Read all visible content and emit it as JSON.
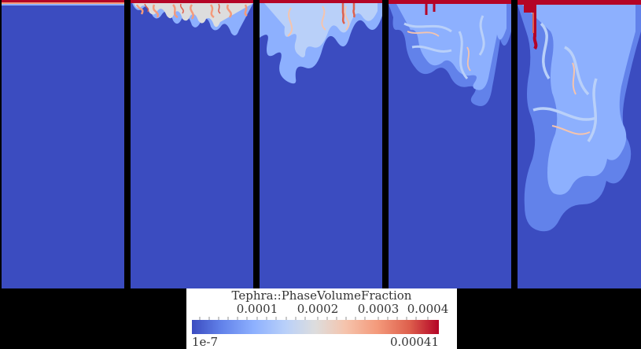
{
  "panels": [
    {
      "id": "t0"
    },
    {
      "id": "t1"
    },
    {
      "id": "t2"
    },
    {
      "id": "t3"
    },
    {
      "id": "t4"
    }
  ],
  "legend": {
    "title": "Tephra::PhaseVolumeFraction",
    "ticks": [
      "0.0001",
      "0.0002",
      "0.0003",
      "0.0004"
    ],
    "min": "1e-7",
    "max": "0.00041"
  },
  "colors": {
    "background": "#000000",
    "field_low": "#3b4cc0",
    "field_mid": "#dddddd",
    "field_high": "#b40426"
  }
}
